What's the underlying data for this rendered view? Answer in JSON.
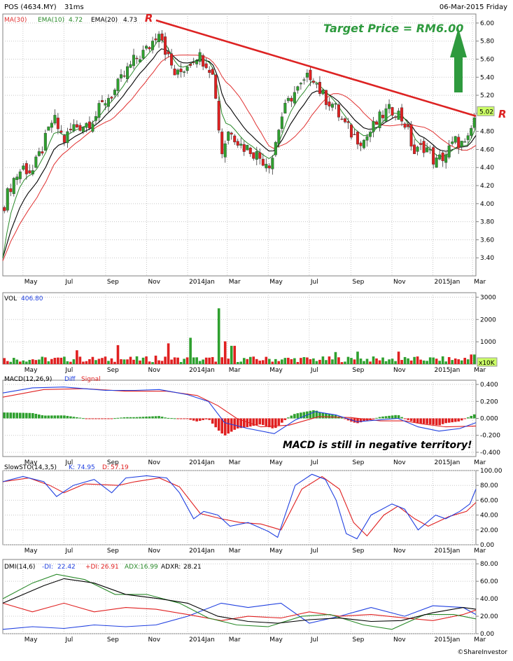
{
  "header": {
    "symbol": "POS (4634.MY)",
    "elapsed": "31ms",
    "date": "06-Mar-2015 Friday"
  },
  "footer": {
    "credit": "©ShareInvestor"
  },
  "colors": {
    "candle_up": "#2ea02e",
    "candle_down": "#e02020",
    "ma30": "#e03030",
    "ema10": "#2a8a2a",
    "ema20": "#000000",
    "trendline": "#dd2222",
    "target_text": "#2e9a3e",
    "arrow": "#2e9a3e",
    "macd": "#2040e0",
    "signal": "#e02020",
    "sto_k": "#2040e0",
    "sto_d": "#e02020",
    "dmi_minus": "#2040e0",
    "dmi_plus": "#e02020",
    "adx": "#2a8a2a",
    "adxr": "#000000",
    "price_tag": "#ccff66"
  },
  "chart_data": [
    {
      "type": "candlestick",
      "panel": "price",
      "legend": [
        {
          "label": "MA(30)",
          "value": "",
          "color": "#e03030"
        },
        {
          "label": "EMA(10)",
          "value": "4.72",
          "color": "#2a8a2a"
        },
        {
          "label": "EMA(20)",
          "value": "4.73",
          "color": "#000000"
        }
      ],
      "ylim": [
        3.2,
        6.1
      ],
      "yticks": [
        "6.00",
        "5.80",
        "5.60",
        "5.40",
        "5.20",
        "5.00",
        "4.80",
        "4.60",
        "4.40",
        "4.20",
        "4.00",
        "3.80",
        "3.60",
        "3.40"
      ],
      "last_price": "5.02",
      "xticks": [
        "May",
        "Jul",
        "Sep",
        "Nov",
        "2014Jan",
        "Mar",
        "May",
        "Jul",
        "Sep",
        "Nov",
        "2015Jan",
        "Mar"
      ],
      "x_start": "2013-04-01",
      "x_end": "2015-03-06",
      "close_series": [
        [
          "2013-04-01",
          3.95
        ],
        [
          "2013-04-15",
          4.25
        ],
        [
          "2013-05-01",
          4.4
        ],
        [
          "2013-05-15",
          4.35
        ],
        [
          "2013-06-01",
          4.65
        ],
        [
          "2013-06-15",
          4.95
        ],
        [
          "2013-07-01",
          4.7
        ],
        [
          "2013-07-15",
          4.85
        ],
        [
          "2013-08-01",
          4.88
        ],
        [
          "2013-08-15",
          4.95
        ],
        [
          "2013-09-01",
          5.15
        ],
        [
          "2013-09-15",
          5.25
        ],
        [
          "2013-10-01",
          5.45
        ],
        [
          "2013-10-15",
          5.6
        ],
        [
          "2013-11-01",
          5.7
        ],
        [
          "2013-11-10",
          5.8
        ],
        [
          "2013-11-20",
          5.95
        ],
        [
          "2013-12-01",
          5.65
        ],
        [
          "2013-12-15",
          5.4
        ],
        [
          "2014-01-01",
          5.55
        ],
        [
          "2014-01-15",
          5.65
        ],
        [
          "2014-02-01",
          5.55
        ],
        [
          "2014-02-10",
          5.35
        ],
        [
          "2014-02-20",
          4.55
        ],
        [
          "2014-03-05",
          4.85
        ],
        [
          "2014-03-20",
          4.65
        ],
        [
          "2014-04-05",
          4.6
        ],
        [
          "2014-04-20",
          4.5
        ],
        [
          "2014-05-05",
          4.45
        ],
        [
          "2014-05-20",
          4.95
        ],
        [
          "2014-06-05",
          5.2
        ],
        [
          "2014-06-20",
          5.3
        ],
        [
          "2014-07-05",
          5.45
        ],
        [
          "2014-07-20",
          5.2
        ],
        [
          "2014-08-05",
          5.1
        ],
        [
          "2014-08-20",
          4.9
        ],
        [
          "2014-09-05",
          4.75
        ],
        [
          "2014-09-20",
          4.7
        ],
        [
          "2014-10-05",
          4.85
        ],
        [
          "2014-10-20",
          5.0
        ],
        [
          "2014-11-05",
          5.05
        ],
        [
          "2014-11-20",
          4.9
        ],
        [
          "2014-12-05",
          4.55
        ],
        [
          "2014-12-20",
          4.65
        ],
        [
          "2015-01-05",
          4.45
        ],
        [
          "2015-01-20",
          4.55
        ],
        [
          "2015-02-05",
          4.7
        ],
        [
          "2015-02-20",
          4.62
        ],
        [
          "2015-03-06",
          5.02
        ]
      ],
      "annotations": [
        {
          "text": "Target Price =  RM6.00",
          "kind": "target"
        },
        {
          "text": "R",
          "kind": "resistance-start"
        },
        {
          "text": "R",
          "kind": "resistance-end"
        }
      ],
      "resistance_line": [
        [
          "2013-11-15",
          6.03
        ],
        [
          "2015-03-06",
          4.97
        ]
      ]
    },
    {
      "type": "bar",
      "panel": "volume",
      "legend": [
        {
          "label": "VOL",
          "value": "406.80"
        }
      ],
      "ylim": [
        0,
        3200
      ],
      "yticks": [
        "3000",
        "2000",
        "1000"
      ],
      "unit_tag": "x10K",
      "xticks": [
        "May",
        "Jul",
        "Sep",
        "Nov",
        "2014Jan",
        "Mar",
        "May",
        "Jul",
        "Sep",
        "Nov",
        "2015Jan",
        "Mar"
      ],
      "spikes": [
        [
          "2013-07-20",
          620
        ],
        [
          "2013-09-20",
          850
        ],
        [
          "2013-11-15",
          380
        ],
        [
          "2013-12-05",
          930
        ],
        [
          "2014-01-05",
          1180
        ],
        [
          "2014-02-15",
          2500
        ],
        [
          "2014-02-25",
          1020
        ],
        [
          "2014-03-10",
          820
        ],
        [
          "2014-08-10",
          540
        ],
        [
          "2014-09-10",
          560
        ],
        [
          "2014-11-10",
          560
        ],
        [
          "2015-03-01",
          430
        ]
      ]
    },
    {
      "type": "line",
      "panel": "macd",
      "legend": [
        {
          "label": "MACD(12,26,9)",
          "value": ""
        },
        {
          "label": "Diff",
          "value": ""
        },
        {
          "label": "Signal",
          "value": ""
        }
      ],
      "ylim": [
        -0.45,
        0.45
      ],
      "yticks": [
        "0.400",
        "0.200",
        "0.000",
        "-0.200",
        "-0.400"
      ],
      "annotation": "MACD is still in negative territory!",
      "xticks": [
        "May",
        "Jul",
        "Sep",
        "Nov",
        "2014Jan",
        "Mar",
        "May",
        "Jul",
        "Sep",
        "Nov",
        "2015Jan",
        "Mar"
      ],
      "macd": [
        [
          "2013-04-01",
          0.3
        ],
        [
          "2013-05-15",
          0.36
        ],
        [
          "2013-07-01",
          0.37
        ],
        [
          "2013-09-01",
          0.33
        ],
        [
          "2013-10-15",
          0.33
        ],
        [
          "2013-11-20",
          0.34
        ],
        [
          "2014-01-01",
          0.28
        ],
        [
          "2014-02-01",
          0.2
        ],
        [
          "2014-02-25",
          -0.05
        ],
        [
          "2014-04-01",
          -0.12
        ],
        [
          "2014-05-10",
          -0.18
        ],
        [
          "2014-06-10",
          -0.02
        ],
        [
          "2014-07-10",
          0.08
        ],
        [
          "2014-08-10",
          0.04
        ],
        [
          "2014-09-10",
          -0.04
        ],
        [
          "2014-10-10",
          -0.02
        ],
        [
          "2014-11-10",
          0.0
        ],
        [
          "2014-12-10",
          -0.1
        ],
        [
          "2015-01-10",
          -0.15
        ],
        [
          "2015-02-10",
          -0.12
        ],
        [
          "2015-03-06",
          -0.05
        ]
      ],
      "signal": [
        [
          "2013-04-01",
          0.25
        ],
        [
          "2013-06-01",
          0.34
        ],
        [
          "2013-08-01",
          0.35
        ],
        [
          "2013-10-01",
          0.32
        ],
        [
          "2013-12-01",
          0.32
        ],
        [
          "2014-01-15",
          0.27
        ],
        [
          "2014-02-15",
          0.15
        ],
        [
          "2014-03-15",
          0.0
        ],
        [
          "2014-04-20",
          -0.1
        ],
        [
          "2014-06-01",
          -0.08
        ],
        [
          "2014-07-15",
          0.02
        ],
        [
          "2014-09-01",
          0.01
        ],
        [
          "2014-10-15",
          -0.03
        ],
        [
          "2014-11-20",
          -0.03
        ],
        [
          "2014-12-20",
          -0.07
        ],
        [
          "2015-01-20",
          -0.1
        ],
        [
          "2015-03-06",
          -0.09
        ]
      ]
    },
    {
      "type": "line",
      "panel": "slowsto",
      "legend": [
        {
          "label": "SlowSTO(14,3,5)",
          "value": ""
        },
        {
          "label": "K:",
          "value": "74.95"
        },
        {
          "label": "D:",
          "value": "57.19"
        }
      ],
      "ylim": [
        0,
        100
      ],
      "yticks": [
        "100.00",
        "80.00",
        "60.00",
        "40.00",
        "20.00",
        "0.00"
      ],
      "xticks": [
        "May",
        "Jul",
        "Sep",
        "Nov",
        "2014Jan",
        "Mar",
        "May",
        "Jul",
        "Sep",
        "Nov",
        "2015Jan",
        "Mar"
      ],
      "k": [
        [
          "2013-04-01",
          85
        ],
        [
          "2013-05-01",
          92
        ],
        [
          "2013-06-01",
          85
        ],
        [
          "2013-06-20",
          65
        ],
        [
          "2013-07-15",
          80
        ],
        [
          "2013-08-15",
          88
        ],
        [
          "2013-09-10",
          70
        ],
        [
          "2013-10-01",
          90
        ],
        [
          "2013-11-01",
          93
        ],
        [
          "2013-12-01",
          90
        ],
        [
          "2013-12-20",
          70
        ],
        [
          "2014-01-10",
          35
        ],
        [
          "2014-01-25",
          45
        ],
        [
          "2014-02-15",
          40
        ],
        [
          "2014-03-05",
          25
        ],
        [
          "2014-04-01",
          30
        ],
        [
          "2014-05-01",
          18
        ],
        [
          "2014-05-15",
          10
        ],
        [
          "2014-06-10",
          80
        ],
        [
          "2014-07-05",
          95
        ],
        [
          "2014-07-25",
          88
        ],
        [
          "2014-08-10",
          60
        ],
        [
          "2014-08-25",
          15
        ],
        [
          "2014-09-10",
          8
        ],
        [
          "2014-10-01",
          40
        ],
        [
          "2014-11-01",
          55
        ],
        [
          "2014-11-20",
          48
        ],
        [
          "2014-12-10",
          20
        ],
        [
          "2015-01-05",
          40
        ],
        [
          "2015-01-20",
          35
        ],
        [
          "2015-02-10",
          45
        ],
        [
          "2015-02-25",
          55
        ],
        [
          "2015-03-06",
          75
        ]
      ],
      "d": [
        [
          "2013-04-01",
          85
        ],
        [
          "2013-05-10",
          90
        ],
        [
          "2013-06-10",
          80
        ],
        [
          "2013-07-01",
          70
        ],
        [
          "2013-08-01",
          82
        ],
        [
          "2013-09-20",
          80
        ],
        [
          "2013-10-15",
          85
        ],
        [
          "2013-11-20",
          90
        ],
        [
          "2013-12-20",
          78
        ],
        [
          "2014-01-20",
          42
        ],
        [
          "2014-02-20",
          35
        ],
        [
          "2014-03-20",
          30
        ],
        [
          "2014-04-20",
          28
        ],
        [
          "2014-05-20",
          20
        ],
        [
          "2014-06-20",
          75
        ],
        [
          "2014-07-20",
          92
        ],
        [
          "2014-08-15",
          75
        ],
        [
          "2014-09-05",
          30
        ],
        [
          "2014-09-25",
          12
        ],
        [
          "2014-10-20",
          40
        ],
        [
          "2014-11-10",
          52
        ],
        [
          "2014-12-05",
          35
        ],
        [
          "2014-12-25",
          25
        ],
        [
          "2015-01-25",
          38
        ],
        [
          "2015-02-20",
          45
        ],
        [
          "2015-03-06",
          57
        ]
      ]
    },
    {
      "type": "line",
      "panel": "dmi",
      "legend": [
        {
          "label": "DMI(14,6)",
          "value": ""
        },
        {
          "label": "-DI:",
          "value": "22.42"
        },
        {
          "label": "+DI:",
          "value": "26.91"
        },
        {
          "label": "ADX:",
          "value": "16.99"
        },
        {
          "label": "ADXR:",
          "value": "28.21"
        }
      ],
      "ylim": [
        0,
        85
      ],
      "yticks": [
        "80.00",
        "60.00",
        "40.00",
        "20.00",
        "0.00"
      ],
      "xticks": [
        "May",
        "Jul",
        "Sep",
        "Nov",
        "2014Jan",
        "Mar",
        "May",
        "Jul",
        "Sep",
        "Nov",
        "2015Jan",
        "Mar"
      ],
      "adxr": [
        [
          "2013-04-01",
          35
        ],
        [
          "2013-06-01",
          55
        ],
        [
          "2013-07-01",
          63
        ],
        [
          "2013-08-15",
          58
        ],
        [
          "2013-10-01",
          45
        ],
        [
          "2013-11-20",
          40
        ],
        [
          "2014-01-01",
          35
        ],
        [
          "2014-02-15",
          20
        ],
        [
          "2014-04-01",
          14
        ],
        [
          "2014-05-15",
          12
        ],
        [
          "2014-07-01",
          16
        ],
        [
          "2014-08-15",
          18
        ],
        [
          "2014-10-01",
          14
        ],
        [
          "2014-11-15",
          15
        ],
        [
          "2015-01-01",
          24
        ],
        [
          "2015-02-15",
          30
        ],
        [
          "2015-03-06",
          28
        ]
      ],
      "adx": [
        [
          "2013-04-01",
          40
        ],
        [
          "2013-05-15",
          58
        ],
        [
          "2013-06-20",
          68
        ],
        [
          "2013-08-01",
          62
        ],
        [
          "2013-09-15",
          45
        ],
        [
          "2013-11-01",
          45
        ],
        [
          "2013-12-20",
          35
        ],
        [
          "2014-02-01",
          18
        ],
        [
          "2014-03-15",
          10
        ],
        [
          "2014-05-01",
          8
        ],
        [
          "2014-06-20",
          20
        ],
        [
          "2014-08-01",
          22
        ],
        [
          "2014-09-20",
          10
        ],
        [
          "2014-11-01",
          5
        ],
        [
          "2014-12-20",
          22
        ],
        [
          "2015-02-01",
          22
        ],
        [
          "2015-03-06",
          17
        ]
      ],
      "plus_di": [
        [
          "2013-04-01",
          35
        ],
        [
          "2013-05-15",
          25
        ],
        [
          "2013-07-01",
          35
        ],
        [
          "2013-08-15",
          25
        ],
        [
          "2013-10-01",
          30
        ],
        [
          "2013-11-15",
          28
        ],
        [
          "2014-01-01",
          22
        ],
        [
          "2014-02-20",
          15
        ],
        [
          "2014-04-01",
          20
        ],
        [
          "2014-05-20",
          18
        ],
        [
          "2014-07-01",
          25
        ],
        [
          "2014-08-15",
          20
        ],
        [
          "2014-10-01",
          22
        ],
        [
          "2014-11-20",
          18
        ],
        [
          "2015-01-01",
          15
        ],
        [
          "2015-02-15",
          22
        ],
        [
          "2015-03-06",
          27
        ]
      ],
      "minus_di": [
        [
          "2013-04-01",
          5
        ],
        [
          "2013-05-15",
          8
        ],
        [
          "2013-07-01",
          6
        ],
        [
          "2013-08-15",
          10
        ],
        [
          "2013-10-01",
          8
        ],
        [
          "2013-11-15",
          10
        ],
        [
          "2014-01-01",
          20
        ],
        [
          "2014-02-20",
          35
        ],
        [
          "2014-04-01",
          30
        ],
        [
          "2014-05-20",
          35
        ],
        [
          "2014-07-01",
          12
        ],
        [
          "2014-08-15",
          20
        ],
        [
          "2014-10-01",
          30
        ],
        [
          "2014-11-20",
          20
        ],
        [
          "2015-01-01",
          32
        ],
        [
          "2015-02-15",
          30
        ],
        [
          "2015-03-06",
          22
        ]
      ]
    }
  ]
}
